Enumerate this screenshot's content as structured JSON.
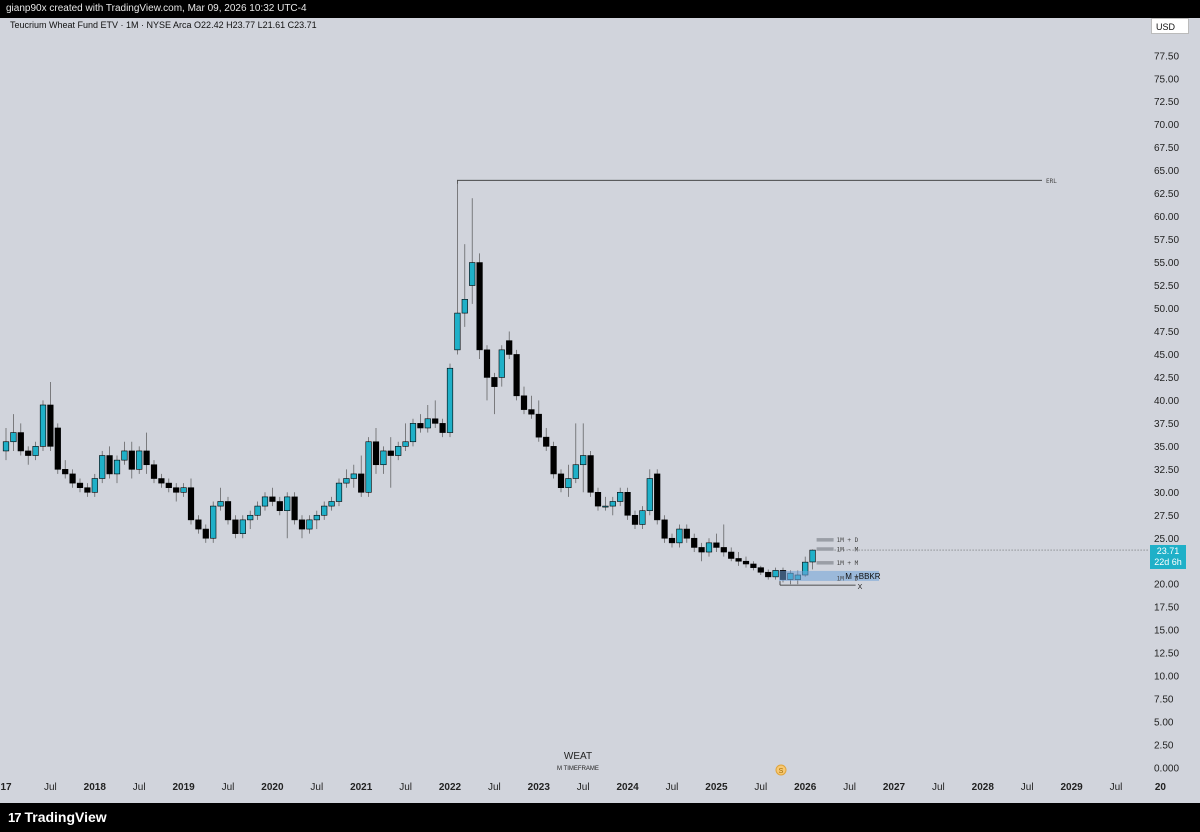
{
  "header": {
    "text": "gianp90x created with TradingView.com, Mar 09, 2026 10:32 UTC-4"
  },
  "symbol_info": "Teucrium Wheat Fund ETV · 1M · NYSE Arca  O22.42  H23.77  L21.61  C23.71",
  "currency": "USD",
  "price_label": {
    "price": "23.71",
    "countdown": "22d 6h"
  },
  "watermark": {
    "symbol": "WEAT",
    "timeframe": "M TIMEFRAME"
  },
  "footer": {
    "logo": "TradingView"
  },
  "colors": {
    "background": "#d1d4dc",
    "up": "#1fb0c8",
    "down": "#000000",
    "annotation_box": "#6fa3d8"
  },
  "chart_data": {
    "type": "candlestick",
    "title": "Teucrium Wheat Fund ETV",
    "timeframe": "1M",
    "ylim": [
      0,
      80
    ],
    "y_ticks": [
      "0.000",
      "2.50",
      "5.00",
      "7.50",
      "10.00",
      "12.50",
      "15.00",
      "17.50",
      "20.00",
      "22.50",
      "25.00",
      "27.50",
      "30.00",
      "32.50",
      "35.00",
      "37.50",
      "40.00",
      "42.50",
      "45.00",
      "47.50",
      "50.00",
      "52.50",
      "55.00",
      "57.50",
      "60.00",
      "62.50",
      "65.00",
      "67.50",
      "70.00",
      "72.50",
      "75.00",
      "77.50"
    ],
    "x_ticks": [
      {
        "label": "17",
        "year": true
      },
      {
        "label": "Jul",
        "year": false
      },
      {
        "label": "2018",
        "year": true
      },
      {
        "label": "Jul",
        "year": false
      },
      {
        "label": "2019",
        "year": true
      },
      {
        "label": "Jul",
        "year": false
      },
      {
        "label": "2020",
        "year": true
      },
      {
        "label": "Jul",
        "year": false
      },
      {
        "label": "2021",
        "year": true
      },
      {
        "label": "Jul",
        "year": false
      },
      {
        "label": "2022",
        "year": true
      },
      {
        "label": "Jul",
        "year": false
      },
      {
        "label": "2023",
        "year": true
      },
      {
        "label": "Jul",
        "year": false
      },
      {
        "label": "2024",
        "year": true
      },
      {
        "label": "Jul",
        "year": false
      },
      {
        "label": "2025",
        "year": true
      },
      {
        "label": "Jul",
        "year": false
      },
      {
        "label": "2026",
        "year": true
      },
      {
        "label": "Jul",
        "year": false
      },
      {
        "label": "2027",
        "year": true
      },
      {
        "label": "Jul",
        "year": false
      },
      {
        "label": "2028",
        "year": true
      },
      {
        "label": "Jul",
        "year": false
      },
      {
        "label": "2029",
        "year": true
      },
      {
        "label": "Jul",
        "year": false
      },
      {
        "label": "20",
        "year": true
      }
    ],
    "candles": [
      {
        "t": "2017-01",
        "o": 34.5,
        "h": 37.0,
        "l": 33.5,
        "c": 35.5
      },
      {
        "t": "2017-02",
        "o": 35.5,
        "h": 38.5,
        "l": 34.5,
        "c": 36.5
      },
      {
        "t": "2017-03",
        "o": 36.5,
        "h": 37.5,
        "l": 34.0,
        "c": 34.5
      },
      {
        "t": "2017-04",
        "o": 34.5,
        "h": 35.0,
        "l": 33.0,
        "c": 34.0
      },
      {
        "t": "2017-05",
        "o": 34.0,
        "h": 35.5,
        "l": 33.5,
        "c": 35.0
      },
      {
        "t": "2017-06",
        "o": 35.0,
        "h": 40.0,
        "l": 34.5,
        "c": 39.5
      },
      {
        "t": "2017-07",
        "o": 39.5,
        "h": 42.0,
        "l": 34.5,
        "c": 35.0
      },
      {
        "t": "2017-08",
        "o": 37.0,
        "h": 37.5,
        "l": 32.0,
        "c": 32.5
      },
      {
        "t": "2017-09",
        "o": 32.5,
        "h": 33.5,
        "l": 31.5,
        "c": 32.0
      },
      {
        "t": "2017-10",
        "o": 32.0,
        "h": 32.5,
        "l": 30.5,
        "c": 31.0
      },
      {
        "t": "2017-11",
        "o": 31.0,
        "h": 31.5,
        "l": 30.0,
        "c": 30.5
      },
      {
        "t": "2017-12",
        "o": 30.5,
        "h": 31.0,
        "l": 29.5,
        "c": 30.0
      },
      {
        "t": "2018-01",
        "o": 30.0,
        "h": 32.0,
        "l": 29.5,
        "c": 31.5
      },
      {
        "t": "2018-02",
        "o": 31.5,
        "h": 34.5,
        "l": 31.0,
        "c": 34.0
      },
      {
        "t": "2018-03",
        "o": 34.0,
        "h": 35.0,
        "l": 31.5,
        "c": 32.0
      },
      {
        "t": "2018-04",
        "o": 32.0,
        "h": 34.0,
        "l": 31.0,
        "c": 33.5
      },
      {
        "t": "2018-05",
        "o": 33.5,
        "h": 35.5,
        "l": 33.0,
        "c": 34.5
      },
      {
        "t": "2018-06",
        "o": 34.5,
        "h": 35.5,
        "l": 31.5,
        "c": 32.5
      },
      {
        "t": "2018-07",
        "o": 32.5,
        "h": 35.0,
        "l": 32.0,
        "c": 34.5
      },
      {
        "t": "2018-08",
        "o": 34.5,
        "h": 36.5,
        "l": 32.0,
        "c": 33.0
      },
      {
        "t": "2018-09",
        "o": 33.0,
        "h": 33.5,
        "l": 31.0,
        "c": 31.5
      },
      {
        "t": "2018-10",
        "o": 31.5,
        "h": 32.0,
        "l": 30.5,
        "c": 31.0
      },
      {
        "t": "2018-11",
        "o": 31.0,
        "h": 31.5,
        "l": 30.0,
        "c": 30.5
      },
      {
        "t": "2018-12",
        "o": 30.5,
        "h": 31.0,
        "l": 29.0,
        "c": 30.0
      },
      {
        "t": "2019-01",
        "o": 30.0,
        "h": 31.0,
        "l": 29.5,
        "c": 30.5
      },
      {
        "t": "2019-02",
        "o": 30.5,
        "h": 31.5,
        "l": 26.5,
        "c": 27.0
      },
      {
        "t": "2019-03",
        "o": 27.0,
        "h": 27.5,
        "l": 25.5,
        "c": 26.0
      },
      {
        "t": "2019-04",
        "o": 26.0,
        "h": 26.5,
        "l": 24.5,
        "c": 25.0
      },
      {
        "t": "2019-05",
        "o": 25.0,
        "h": 29.0,
        "l": 24.5,
        "c": 28.5
      },
      {
        "t": "2019-06",
        "o": 28.5,
        "h": 30.5,
        "l": 28.0,
        "c": 29.0
      },
      {
        "t": "2019-07",
        "o": 29.0,
        "h": 29.5,
        "l": 26.5,
        "c": 27.0
      },
      {
        "t": "2019-08",
        "o": 27.0,
        "h": 27.5,
        "l": 25.0,
        "c": 25.5
      },
      {
        "t": "2019-09",
        "o": 25.5,
        "h": 27.5,
        "l": 25.0,
        "c": 27.0
      },
      {
        "t": "2019-10",
        "o": 27.0,
        "h": 28.0,
        "l": 26.0,
        "c": 27.5
      },
      {
        "t": "2019-11",
        "o": 27.5,
        "h": 29.0,
        "l": 27.0,
        "c": 28.5
      },
      {
        "t": "2019-12",
        "o": 28.5,
        "h": 30.0,
        "l": 28.0,
        "c": 29.5
      },
      {
        "t": "2020-01",
        "o": 29.5,
        "h": 30.5,
        "l": 28.5,
        "c": 29.0
      },
      {
        "t": "2020-02",
        "o": 29.0,
        "h": 29.5,
        "l": 27.5,
        "c": 28.0
      },
      {
        "t": "2020-03",
        "o": 28.0,
        "h": 30.0,
        "l": 25.0,
        "c": 29.5
      },
      {
        "t": "2020-04",
        "o": 29.5,
        "h": 30.0,
        "l": 26.5,
        "c": 27.0
      },
      {
        "t": "2020-05",
        "o": 27.0,
        "h": 27.5,
        "l": 25.0,
        "c": 26.0
      },
      {
        "t": "2020-06",
        "o": 26.0,
        "h": 27.5,
        "l": 25.5,
        "c": 27.0
      },
      {
        "t": "2020-07",
        "o": 27.0,
        "h": 28.0,
        "l": 26.0,
        "c": 27.5
      },
      {
        "t": "2020-08",
        "o": 27.5,
        "h": 29.0,
        "l": 27.0,
        "c": 28.5
      },
      {
        "t": "2020-09",
        "o": 28.5,
        "h": 29.5,
        "l": 28.0,
        "c": 29.0
      },
      {
        "t": "2020-10",
        "o": 29.0,
        "h": 31.5,
        "l": 28.5,
        "c": 31.0
      },
      {
        "t": "2020-11",
        "o": 31.0,
        "h": 32.5,
        "l": 30.5,
        "c": 31.5
      },
      {
        "t": "2020-12",
        "o": 31.5,
        "h": 33.0,
        "l": 30.5,
        "c": 32.0
      },
      {
        "t": "2021-01",
        "o": 32.0,
        "h": 34.0,
        "l": 29.5,
        "c": 30.0
      },
      {
        "t": "2021-02",
        "o": 30.0,
        "h": 36.0,
        "l": 29.5,
        "c": 35.5
      },
      {
        "t": "2021-03",
        "o": 35.5,
        "h": 37.0,
        "l": 32.0,
        "c": 33.0
      },
      {
        "t": "2021-04",
        "o": 33.0,
        "h": 35.0,
        "l": 32.0,
        "c": 34.5
      },
      {
        "t": "2021-05",
        "o": 34.5,
        "h": 36.0,
        "l": 30.5,
        "c": 34.0
      },
      {
        "t": "2021-06",
        "o": 34.0,
        "h": 35.5,
        "l": 33.5,
        "c": 35.0
      },
      {
        "t": "2021-07",
        "o": 35.0,
        "h": 37.5,
        "l": 34.5,
        "c": 35.5
      },
      {
        "t": "2021-08",
        "o": 35.5,
        "h": 38.0,
        "l": 35.0,
        "c": 37.5
      },
      {
        "t": "2021-09",
        "o": 37.5,
        "h": 38.5,
        "l": 36.5,
        "c": 37.0
      },
      {
        "t": "2021-10",
        "o": 37.0,
        "h": 39.5,
        "l": 36.5,
        "c": 38.0
      },
      {
        "t": "2021-11",
        "o": 38.0,
        "h": 40.0,
        "l": 37.0,
        "c": 37.5
      },
      {
        "t": "2021-12",
        "o": 37.5,
        "h": 38.0,
        "l": 36.0,
        "c": 36.5
      },
      {
        "t": "2022-01",
        "o": 36.5,
        "h": 44.0,
        "l": 36.0,
        "c": 43.5
      },
      {
        "t": "2022-02",
        "o": 45.5,
        "h": 64.0,
        "l": 45.0,
        "c": 49.5
      },
      {
        "t": "2022-03",
        "o": 49.5,
        "h": 57.0,
        "l": 48.0,
        "c": 51.0
      },
      {
        "t": "2022-04",
        "o": 52.5,
        "h": 62.0,
        "l": 50.5,
        "c": 55.0
      },
      {
        "t": "2022-05",
        "o": 55.0,
        "h": 56.0,
        "l": 44.5,
        "c": 45.5
      },
      {
        "t": "2022-06",
        "o": 45.5,
        "h": 46.0,
        "l": 40.0,
        "c": 42.5
      },
      {
        "t": "2022-07",
        "o": 42.5,
        "h": 43.0,
        "l": 38.5,
        "c": 41.5
      },
      {
        "t": "2022-08",
        "o": 42.5,
        "h": 46.0,
        "l": 41.5,
        "c": 45.5
      },
      {
        "t": "2022-09",
        "o": 46.5,
        "h": 47.5,
        "l": 44.5,
        "c": 45.0
      },
      {
        "t": "2022-10",
        "o": 45.0,
        "h": 45.5,
        "l": 40.0,
        "c": 40.5
      },
      {
        "t": "2022-11",
        "o": 40.5,
        "h": 41.5,
        "l": 38.5,
        "c": 39.0
      },
      {
        "t": "2022-12",
        "o": 39.0,
        "h": 40.5,
        "l": 38.0,
        "c": 38.5
      },
      {
        "t": "2023-01",
        "o": 38.5,
        "h": 40.0,
        "l": 35.5,
        "c": 36.0
      },
      {
        "t": "2023-02",
        "o": 36.0,
        "h": 37.0,
        "l": 34.5,
        "c": 35.0
      },
      {
        "t": "2023-03",
        "o": 35.0,
        "h": 35.5,
        "l": 31.5,
        "c": 32.0
      },
      {
        "t": "2023-04",
        "o": 32.0,
        "h": 32.5,
        "l": 30.0,
        "c": 30.5
      },
      {
        "t": "2023-05",
        "o": 30.5,
        "h": 33.0,
        "l": 29.5,
        "c": 31.5
      },
      {
        "t": "2023-06",
        "o": 31.5,
        "h": 37.5,
        "l": 31.0,
        "c": 33.0
      },
      {
        "t": "2023-07",
        "o": 33.0,
        "h": 37.5,
        "l": 30.0,
        "c": 34.0
      },
      {
        "t": "2023-08",
        "o": 34.0,
        "h": 34.5,
        "l": 29.5,
        "c": 30.0
      },
      {
        "t": "2023-09",
        "o": 30.0,
        "h": 30.5,
        "l": 28.0,
        "c": 28.5
      },
      {
        "t": "2023-10",
        "o": 28.5,
        "h": 29.5,
        "l": 28.0,
        "c": 28.5
      },
      {
        "t": "2023-11",
        "o": 28.5,
        "h": 29.5,
        "l": 27.5,
        "c": 29.0
      },
      {
        "t": "2023-12",
        "o": 29.0,
        "h": 30.5,
        "l": 28.5,
        "c": 30.0
      },
      {
        "t": "2024-01",
        "o": 30.0,
        "h": 30.5,
        "l": 27.0,
        "c": 27.5
      },
      {
        "t": "2024-02",
        "o": 27.5,
        "h": 28.0,
        "l": 26.0,
        "c": 26.5
      },
      {
        "t": "2024-03",
        "o": 26.5,
        "h": 28.5,
        "l": 26.0,
        "c": 28.0
      },
      {
        "t": "2024-04",
        "o": 28.0,
        "h": 32.5,
        "l": 27.5,
        "c": 31.5
      },
      {
        "t": "2024-05",
        "o": 32.0,
        "h": 32.5,
        "l": 26.5,
        "c": 27.0
      },
      {
        "t": "2024-06",
        "o": 27.0,
        "h": 27.5,
        "l": 24.5,
        "c": 25.0
      },
      {
        "t": "2024-07",
        "o": 25.0,
        "h": 25.5,
        "l": 24.0,
        "c": 24.5
      },
      {
        "t": "2024-08",
        "o": 24.5,
        "h": 26.5,
        "l": 24.0,
        "c": 26.0
      },
      {
        "t": "2024-09",
        "o": 26.0,
        "h": 26.5,
        "l": 24.5,
        "c": 25.0
      },
      {
        "t": "2024-10",
        "o": 25.0,
        "h": 25.5,
        "l": 23.5,
        "c": 24.0
      },
      {
        "t": "2024-11",
        "o": 24.0,
        "h": 24.5,
        "l": 22.5,
        "c": 23.5
      },
      {
        "t": "2024-12",
        "o": 23.5,
        "h": 25.0,
        "l": 23.0,
        "c": 24.5
      },
      {
        "t": "2025-01",
        "o": 24.5,
        "h": 25.5,
        "l": 23.5,
        "c": 24.0
      },
      {
        "t": "2025-02",
        "o": 24.0,
        "h": 26.5,
        "l": 23.0,
        "c": 23.5
      },
      {
        "t": "2025-03",
        "o": 23.5,
        "h": 24.0,
        "l": 22.5,
        "c": 22.8
      },
      {
        "t": "2025-04",
        "o": 22.8,
        "h": 23.5,
        "l": 22.0,
        "c": 22.5
      },
      {
        "t": "2025-05",
        "o": 22.5,
        "h": 23.0,
        "l": 21.8,
        "c": 22.2
      },
      {
        "t": "2025-06",
        "o": 22.2,
        "h": 22.5,
        "l": 21.5,
        "c": 21.8
      },
      {
        "t": "2025-07",
        "o": 21.8,
        "h": 22.0,
        "l": 21.0,
        "c": 21.3
      },
      {
        "t": "2025-08",
        "o": 21.3,
        "h": 21.6,
        "l": 20.5,
        "c": 20.8
      },
      {
        "t": "2025-09",
        "o": 20.8,
        "h": 21.8,
        "l": 20.5,
        "c": 21.5
      },
      {
        "t": "2025-10",
        "o": 21.5,
        "h": 21.8,
        "l": 20.2,
        "c": 20.5
      },
      {
        "t": "2025-11",
        "o": 20.5,
        "h": 21.5,
        "l": 20.0,
        "c": 21.2
      },
      {
        "t": "2025-12",
        "o": 20.5,
        "h": 21.5,
        "l": 20.0,
        "c": 21.0
      },
      {
        "t": "2026-01",
        "o": 21.0,
        "h": 23.0,
        "l": 20.8,
        "c": 22.4
      },
      {
        "t": "2026-02",
        "o": 22.42,
        "h": 23.77,
        "l": 21.61,
        "c": 23.71
      }
    ],
    "last_price": 23.71,
    "annotations": [
      {
        "label": "ERL",
        "price": 63.95,
        "from": "2022-02",
        "to": "2028-09"
      },
      {
        "label": "1M + D",
        "price": 24.8
      },
      {
        "label": "1M - M",
        "price": 23.8
      },
      {
        "label": "1M + M",
        "price": 22.3
      },
      {
        "label": "M +BBKR",
        "price": 20.9
      },
      {
        "label": "1M - D",
        "price": 20.6
      },
      {
        "label": "X",
        "price": 19.9
      }
    ]
  }
}
